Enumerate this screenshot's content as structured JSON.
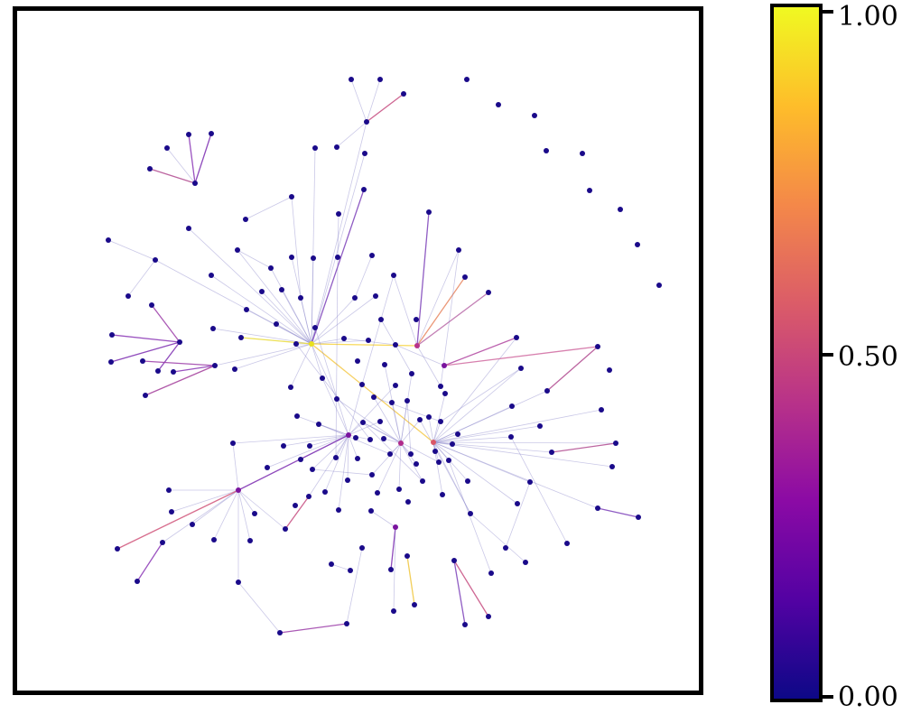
{
  "colorbar": {
    "colors": [
      "#0d0887",
      "#5302a3",
      "#8b0aa5",
      "#b83289",
      "#db5c68",
      "#f48849",
      "#febd2a",
      "#f0f921"
    ],
    "ticks": [
      "0.00",
      "0.50",
      "1.00"
    ]
  },
  "graph": {
    "node_color": "#1a0a8a",
    "edge_color_scale": "plasma"
  }
}
